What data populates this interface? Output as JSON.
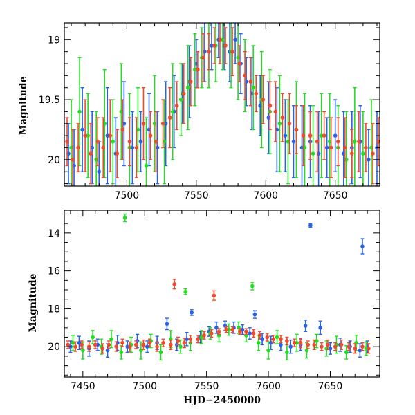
{
  "chart_data": [
    {
      "type": "scatter",
      "title": "",
      "xlabel": "",
      "ylabel": "Magnitude",
      "xlim": [
        7455,
        7682
      ],
      "ylim": [
        20.22,
        18.86
      ],
      "y_inverted": true,
      "xticks": [
        7500,
        7550,
        7600,
        7650
      ],
      "yticks": [
        19,
        19.5,
        20
      ],
      "grid": false,
      "series": [
        {
          "color": "#2563eb",
          "x": [
            7458,
            7462,
            7468,
            7475,
            7480,
            7486,
            7492,
            7498,
            7504,
            7510,
            7516,
            7522,
            7528,
            7534,
            7540,
            7545,
            7550,
            7556,
            7561,
            7566,
            7570,
            7574,
            7578,
            7582,
            7586,
            7590,
            7596,
            7602,
            7608,
            7614,
            7620,
            7626,
            7632,
            7638,
            7644,
            7650,
            7656,
            7662,
            7668,
            7674,
            7680
          ],
          "y": [
            19.95,
            20.05,
            19.75,
            19.9,
            20.1,
            19.8,
            19.95,
            19.7,
            19.9,
            19.85,
            19.75,
            19.9,
            19.7,
            19.6,
            19.45,
            19.35,
            19.2,
            19.1,
            19.05,
            19.0,
            19.05,
            19.1,
            19.0,
            19.2,
            19.35,
            19.45,
            19.55,
            19.65,
            19.75,
            19.8,
            19.85,
            19.9,
            19.85,
            19.95,
            19.9,
            19.8,
            19.95,
            19.9,
            19.85,
            20.0,
            19.9
          ],
          "err": [
            0.25,
            0.3,
            0.35,
            0.3,
            0.25,
            0.4,
            0.3,
            0.35,
            0.3,
            0.25,
            0.3,
            0.3,
            0.35,
            0.3,
            0.25,
            0.3,
            0.2,
            0.25,
            0.2,
            0.15,
            0.2,
            0.25,
            0.2,
            0.25,
            0.2,
            0.3,
            0.25,
            0.3,
            0.35,
            0.3,
            0.3,
            0.35,
            0.3,
            0.35,
            0.25,
            0.3,
            0.35,
            0.3,
            0.3,
            0.25,
            0.3
          ]
        },
        {
          "color": "#22dd22",
          "x": [
            7460,
            7466,
            7472,
            7478,
            7484,
            7490,
            7496,
            7502,
            7508,
            7514,
            7520,
            7527,
            7533,
            7539,
            7544,
            7549,
            7554,
            7559,
            7564,
            7569,
            7575,
            7580,
            7585,
            7591,
            7597,
            7603,
            7610,
            7616,
            7622,
            7628,
            7634,
            7640,
            7646,
            7652,
            7658,
            7664,
            7670,
            7676
          ],
          "y": [
            19.9,
            19.6,
            19.8,
            20.0,
            19.7,
            19.85,
            19.6,
            19.9,
            19.75,
            20.05,
            19.7,
            19.85,
            19.6,
            19.5,
            19.4,
            19.25,
            19.15,
            19.1,
            19.05,
            19.0,
            19.1,
            19.15,
            19.3,
            19.4,
            19.5,
            19.6,
            19.7,
            19.85,
            19.75,
            19.9,
            19.95,
            19.8,
            19.85,
            19.9,
            20.0,
            19.85,
            19.95,
            19.9
          ],
          "err": [
            0.4,
            0.45,
            0.35,
            0.4,
            0.45,
            0.35,
            0.4,
            0.45,
            0.35,
            0.4,
            0.4,
            0.35,
            0.4,
            0.3,
            0.35,
            0.3,
            0.25,
            0.3,
            0.3,
            0.25,
            0.3,
            0.35,
            0.3,
            0.35,
            0.4,
            0.35,
            0.4,
            0.35,
            0.4,
            0.45,
            0.4,
            0.35,
            0.4,
            0.35,
            0.4,
            0.45,
            0.35,
            0.4
          ]
        },
        {
          "color": "#f04a2c",
          "x": [
            7457,
            7461,
            7465,
            7470,
            7474,
            7479,
            7483,
            7488,
            7493,
            7497,
            7502,
            7507,
            7512,
            7517,
            7521,
            7526,
            7531,
            7536,
            7541,
            7546,
            7551,
            7555,
            7559,
            7563,
            7567,
            7571,
            7576,
            7581,
            7585,
            7589,
            7593,
            7598,
            7603,
            7607,
            7612,
            7617,
            7622,
            7627,
            7632,
            7637,
            7642,
            7647,
            7652,
            7657,
            7662,
            7667,
            7672,
            7677,
            7681
          ],
          "y": [
            19.85,
            20.0,
            19.9,
            19.8,
            19.95,
            19.85,
            19.9,
            19.8,
            19.95,
            19.75,
            19.85,
            19.9,
            19.7,
            19.8,
            19.85,
            19.7,
            19.65,
            19.55,
            19.45,
            19.35,
            19.25,
            19.15,
            19.1,
            19.05,
            19.0,
            19.05,
            19.1,
            19.2,
            19.3,
            19.35,
            19.45,
            19.5,
            19.55,
            19.6,
            19.65,
            19.7,
            19.75,
            19.8,
            19.8,
            19.85,
            19.8,
            19.9,
            19.85,
            19.9,
            19.95,
            19.85,
            19.9,
            19.95,
            19.85
          ],
          "err": [
            0.2,
            0.25,
            0.2,
            0.3,
            0.25,
            0.2,
            0.25,
            0.3,
            0.2,
            0.25,
            0.2,
            0.25,
            0.3,
            0.2,
            0.25,
            0.2,
            0.25,
            0.2,
            0.25,
            0.2,
            0.15,
            0.2,
            0.15,
            0.15,
            0.2,
            0.15,
            0.2,
            0.15,
            0.2,
            0.2,
            0.15,
            0.2,
            0.2,
            0.25,
            0.2,
            0.25,
            0.2,
            0.25,
            0.2,
            0.25,
            0.2,
            0.25,
            0.2,
            0.25,
            0.2,
            0.25,
            0.2,
            0.25,
            0.2
          ]
        }
      ]
    },
    {
      "type": "scatter",
      "title": "",
      "xlabel": "HJD−2450000",
      "ylabel": "Magnitude",
      "xlim": [
        7435,
        7690
      ],
      "ylim": [
        21.6,
        12.8
      ],
      "y_inverted": true,
      "xticks": [
        7450,
        7500,
        7550,
        7600,
        7650
      ],
      "yticks": [
        14,
        16,
        18,
        20
      ],
      "grid": false,
      "series": [
        {
          "color": "#2563eb",
          "x": [
            7440,
            7447,
            7455,
            7462,
            7470,
            7478,
            7486,
            7494,
            7502,
            7510,
            7518,
            7526,
            7534,
            7538,
            7545,
            7552,
            7558,
            7565,
            7572,
            7579,
            7585,
            7589,
            7595,
            7602,
            7610,
            7618,
            7626,
            7630,
            7634,
            7642,
            7650,
            7658,
            7666,
            7674,
            7676,
            7680
          ],
          "y": [
            20.0,
            19.8,
            20.1,
            19.9,
            20.2,
            19.8,
            20.0,
            19.7,
            20.0,
            19.8,
            18.8,
            19.9,
            19.6,
            18.2,
            19.5,
            19.2,
            19.0,
            18.9,
            19.0,
            19.1,
            19.3,
            18.3,
            19.6,
            19.8,
            19.9,
            20.0,
            19.9,
            18.9,
            13.6,
            19.0,
            20.1,
            19.9,
            20.0,
            20.2,
            14.7,
            20.0
          ],
          "err": [
            0.3,
            0.35,
            0.4,
            0.3,
            0.35,
            0.4,
            0.3,
            0.35,
            0.3,
            0.35,
            0.3,
            0.3,
            0.35,
            0.15,
            0.3,
            0.25,
            0.3,
            0.25,
            0.3,
            0.25,
            0.3,
            0.2,
            0.3,
            0.35,
            0.3,
            0.35,
            0.3,
            0.3,
            0.1,
            0.35,
            0.3,
            0.35,
            0.3,
            0.35,
            0.4,
            0.3
          ]
        },
        {
          "color": "#22dd22",
          "x": [
            7442,
            7450,
            7458,
            7465,
            7473,
            7481,
            7484,
            7489,
            7497,
            7505,
            7513,
            7521,
            7529,
            7533,
            7537,
            7546,
            7553,
            7560,
            7568,
            7576,
            7582,
            7587,
            7592,
            7600,
            7607,
            7615,
            7623,
            7631,
            7639,
            7647,
            7655,
            7663,
            7671,
            7679
          ],
          "y": [
            19.8,
            20.2,
            19.5,
            20.0,
            19.6,
            20.3,
            13.2,
            19.9,
            20.2,
            19.7,
            20.3,
            19.6,
            20.0,
            17.1,
            19.8,
            19.5,
            19.3,
            19.4,
            19.1,
            19.0,
            19.4,
            16.8,
            19.8,
            20.2,
            19.5,
            20.3,
            19.8,
            20.2,
            19.7,
            20.1,
            19.9,
            20.3,
            19.8,
            20.1
          ],
          "err": [
            0.4,
            0.45,
            0.35,
            0.4,
            0.45,
            0.35,
            0.2,
            0.4,
            0.45,
            0.35,
            0.4,
            0.45,
            0.35,
            0.15,
            0.4,
            0.35,
            0.3,
            0.35,
            0.3,
            0.3,
            0.35,
            0.2,
            0.4,
            0.45,
            0.35,
            0.4,
            0.45,
            0.4,
            0.35,
            0.4,
            0.45,
            0.35,
            0.4,
            0.35
          ]
        },
        {
          "color": "#f04a2c",
          "x": [
            7438,
            7444,
            7449,
            7455,
            7460,
            7466,
            7471,
            7477,
            7482,
            7488,
            7493,
            7499,
            7504,
            7510,
            7515,
            7521,
            7524,
            7527,
            7532,
            7537,
            7543,
            7548,
            7554,
            7556,
            7560,
            7566,
            7571,
            7577,
            7582,
            7588,
            7593,
            7599,
            7604,
            7610,
            7615,
            7621,
            7626,
            7632,
            7637,
            7643,
            7648,
            7654,
            7659,
            7665,
            7670,
            7676,
            7681
          ],
          "y": [
            19.9,
            20.0,
            19.9,
            20.0,
            19.9,
            20.1,
            19.9,
            20.0,
            19.8,
            20.0,
            19.9,
            19.9,
            19.8,
            20.0,
            19.8,
            19.9,
            16.7,
            19.7,
            19.8,
            19.6,
            19.6,
            19.4,
            19.3,
            17.3,
            19.2,
            19.1,
            19.1,
            19.2,
            19.2,
            19.3,
            19.4,
            19.5,
            19.6,
            19.6,
            19.7,
            19.8,
            19.8,
            19.9,
            19.9,
            20.0,
            19.9,
            20.0,
            19.9,
            20.0,
            20.1,
            20.0,
            20.1
          ],
          "err": [
            0.2,
            0.25,
            0.2,
            0.25,
            0.2,
            0.25,
            0.2,
            0.25,
            0.2,
            0.25,
            0.2,
            0.25,
            0.2,
            0.25,
            0.2,
            0.25,
            0.25,
            0.2,
            0.25,
            0.2,
            0.2,
            0.2,
            0.2,
            0.25,
            0.15,
            0.15,
            0.15,
            0.15,
            0.15,
            0.2,
            0.2,
            0.2,
            0.2,
            0.2,
            0.2,
            0.2,
            0.25,
            0.2,
            0.25,
            0.2,
            0.25,
            0.2,
            0.25,
            0.2,
            0.25,
            0.2,
            0.25
          ]
        }
      ]
    }
  ]
}
